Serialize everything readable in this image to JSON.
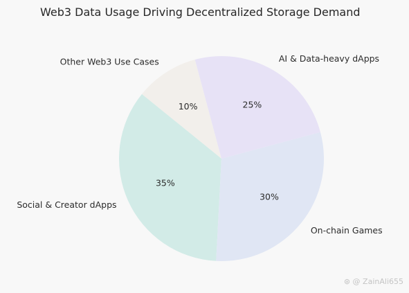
{
  "chart_data": {
    "type": "pie",
    "title": "Web3 Data Usage Driving Decentralized Storage Demand",
    "start_angle_deg": 105,
    "direction": "counterclockwise",
    "slices": [
      {
        "label": "Other Web3 Use Cases",
        "value": 10,
        "pct_label": "10%",
        "color": "#f2efeb"
      },
      {
        "label": "Social & Creator dApps",
        "value": 35,
        "pct_label": "35%",
        "color": "#d2ebe7"
      },
      {
        "label": "On-chain Games",
        "value": 30,
        "pct_label": "30%",
        "color": "#e0e6f4"
      },
      {
        "label": "AI & Data-heavy dApps",
        "value": 25,
        "pct_label": "25%",
        "color": "#e7e2f6"
      }
    ]
  },
  "watermark": "⊛ @ ZainAli655"
}
